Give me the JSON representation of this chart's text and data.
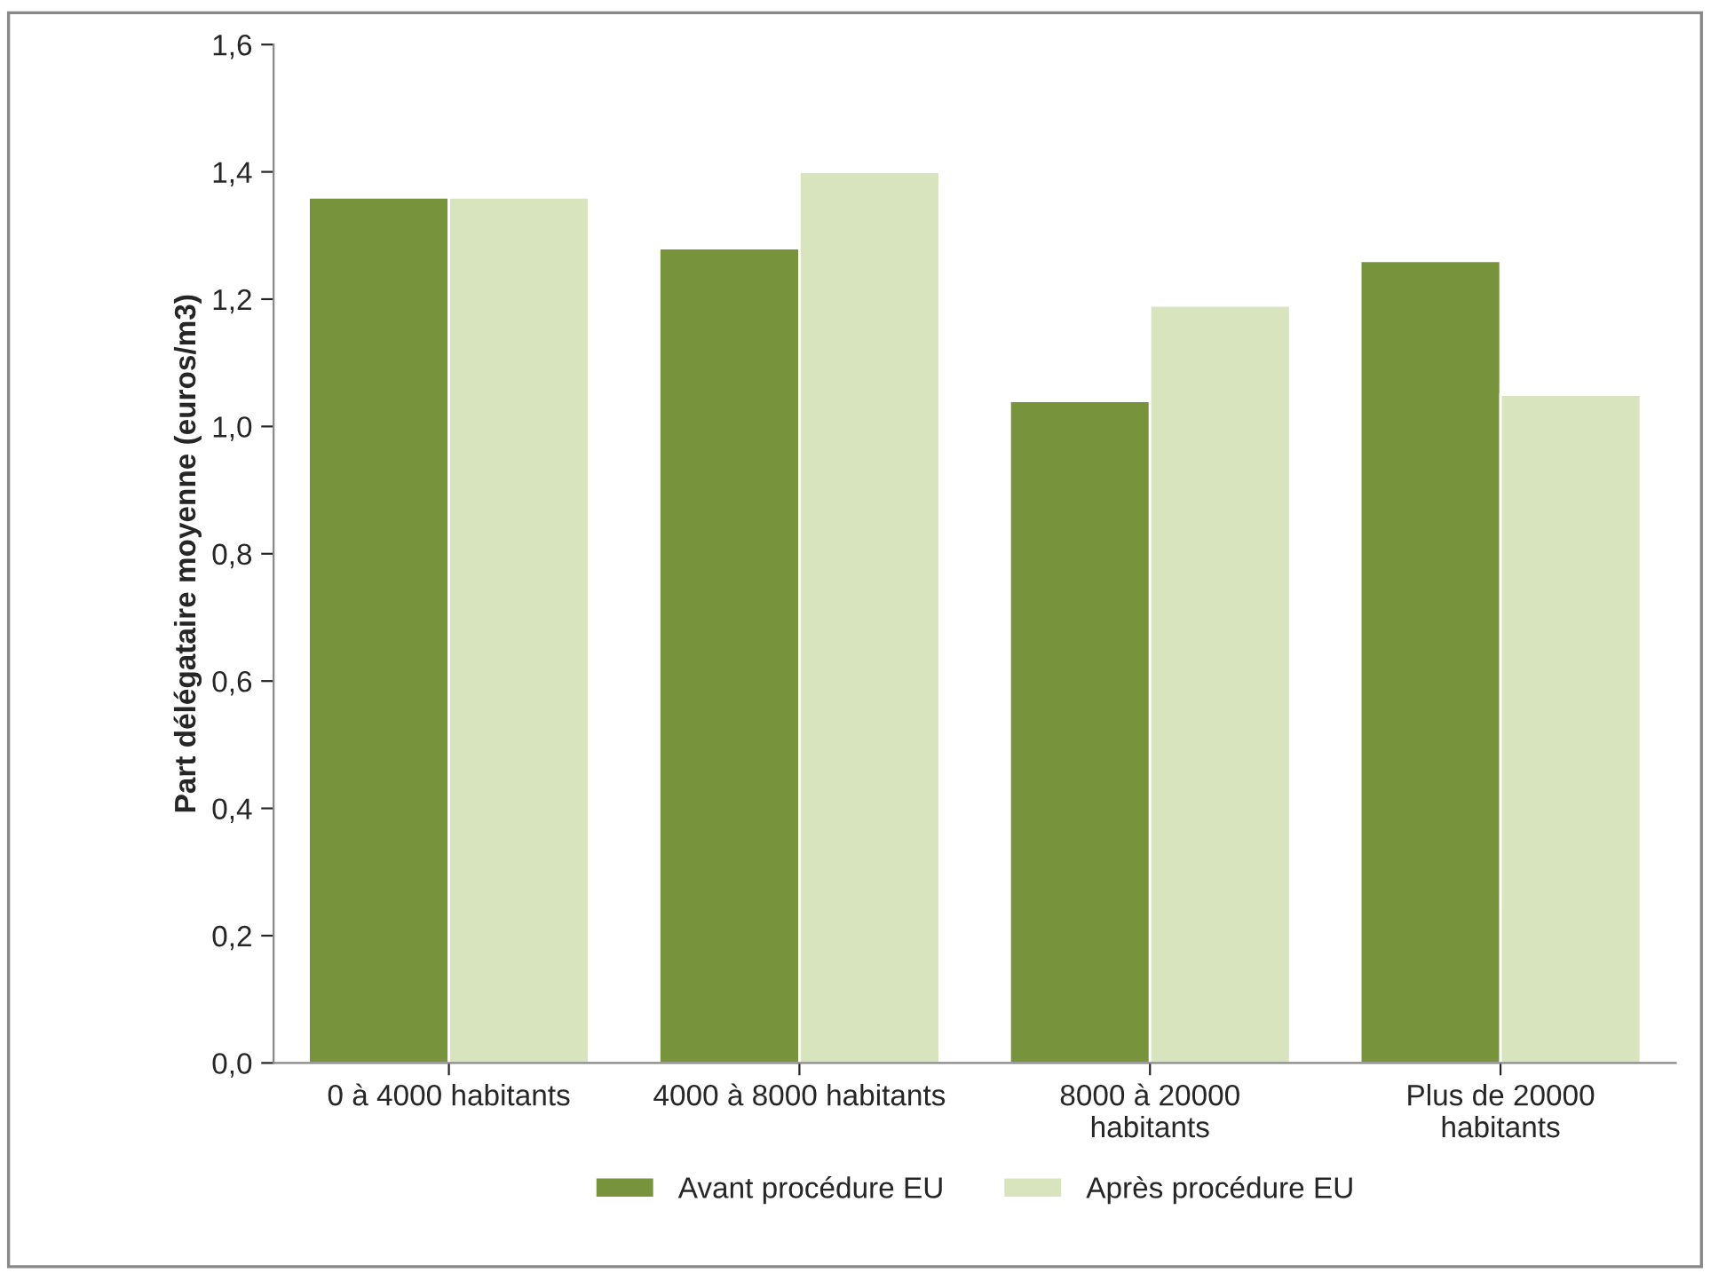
{
  "chart_data": {
    "type": "bar",
    "ylabel": "Part délégataire moyenne (euros/m3)",
    "categories": [
      "0 à 4000 habitants",
      "4000 à 8000 habitants",
      "8000 à 20000\nhabitants",
      "Plus de 20000\nhabitants"
    ],
    "series": [
      {
        "name": "Avant procédure EU",
        "color": "#77933c",
        "values": [
          1.36,
          1.28,
          1.04,
          1.26
        ]
      },
      {
        "name": "Après procédure EU",
        "color": "#d7e4bd",
        "values": [
          1.36,
          1.4,
          1.19,
          1.05
        ]
      }
    ],
    "ylim": [
      0,
      1.6
    ],
    "yticks": [
      {
        "value": 0,
        "label": "0,0"
      },
      {
        "value": 0.2,
        "label": "0,2"
      },
      {
        "value": 0.4,
        "label": "0,4"
      },
      {
        "value": 0.6,
        "label": "0,6"
      },
      {
        "value": 0.8,
        "label": "0,8"
      },
      {
        "value": 1.0,
        "label": "1,0"
      },
      {
        "value": 1.2,
        "label": "1,2"
      },
      {
        "value": 1.4,
        "label": "1,4"
      },
      {
        "value": 1.6,
        "label": "1,6"
      }
    ],
    "grid": false,
    "legend": "bottom"
  }
}
